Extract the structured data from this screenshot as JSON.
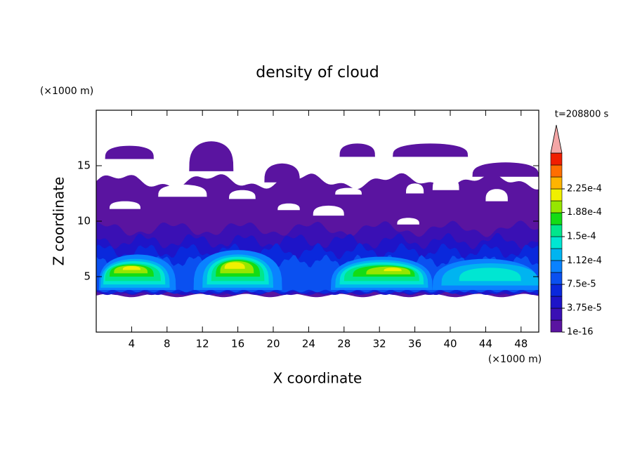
{
  "chart_data": {
    "type": "contour",
    "title": "density of cloud",
    "x_label": "X coordinate",
    "y_label": "Z coordinate",
    "x_unit": "(×1000 m)",
    "y_unit": "(×1000 m)",
    "annotation": "t=208800 s",
    "xlim": [
      0,
      50
    ],
    "xticks": [
      4,
      8,
      12,
      16,
      20,
      24,
      28,
      32,
      36,
      40,
      44,
      48
    ],
    "ylim": [
      0,
      20
    ],
    "yticks": [
      5,
      10,
      15
    ],
    "colorbar": {
      "ticks": [
        {
          "value": 1e-16,
          "label": "1e-16"
        },
        {
          "value": 3.75e-05,
          "label": "3.75e-5"
        },
        {
          "value": 7.5e-05,
          "label": "7.5e-5"
        },
        {
          "value": 0.000112,
          "label": "1.12e-4"
        },
        {
          "value": 0.00015,
          "label": "1.5e-4"
        },
        {
          "value": 0.000188,
          "label": "1.88e-4"
        },
        {
          "value": 0.000225,
          "label": "2.25e-4"
        }
      ],
      "colors": [
        "#5a14a0",
        "#3a10b4",
        "#1e14c8",
        "#0a28dc",
        "#0a50f0",
        "#0a82ff",
        "#00b4f0",
        "#00e6d2",
        "#00e68c",
        "#14dc14",
        "#96e600",
        "#f0f000",
        "#ffb400",
        "#ff6e00",
        "#f01e00"
      ],
      "extend_color": "#f4a6a6"
    }
  }
}
